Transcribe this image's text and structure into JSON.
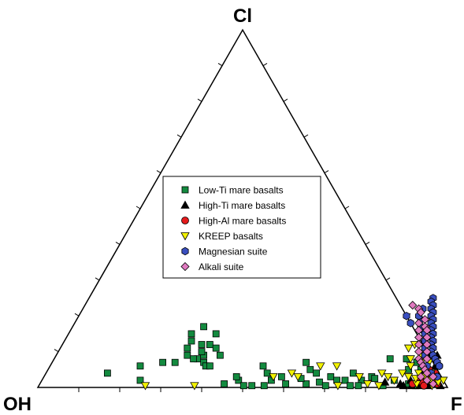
{
  "chart_data": {
    "type": "scatter",
    "subtype": "ternary",
    "apex_labels": {
      "top": "Cl",
      "left": "OH",
      "right": "F"
    },
    "legend": {
      "placement": "center",
      "entries": [
        {
          "name": "Low-Ti mare basalts",
          "marker": "square",
          "color": "#138a3f"
        },
        {
          "name": "High-Ti mare basalts",
          "marker": "triangle-up",
          "color": "#000000"
        },
        {
          "name": "High-Al mare basalts",
          "marker": "circle",
          "color": "#e41a1c"
        },
        {
          "name": "KREEP basalts",
          "marker": "triangle-down",
          "color": "#f2f200"
        },
        {
          "name": "Magnesian suite",
          "marker": "hexagon",
          "color": "#3a4fbf"
        },
        {
          "name": "Alkali suite",
          "marker": "diamond",
          "color": "#e07ac0"
        }
      ]
    },
    "ticks_per_edge": 9,
    "series": [
      {
        "name": "Low-Ti mare basalts",
        "points": [
          [
            0.82,
            0.08
          ],
          [
            0.86,
            0.08
          ],
          [
            0.62,
            0.07
          ],
          [
            0.64,
            0.05
          ],
          [
            0.66,
            0.04
          ],
          [
            0.7,
            0.03
          ],
          [
            0.72,
            0.02
          ],
          [
            0.74,
            0.02
          ],
          [
            0.52,
            0.06
          ],
          [
            0.54,
            0.04
          ],
          [
            0.58,
            0.03
          ],
          [
            0.56,
            0.02
          ],
          [
            0.6,
            0.01
          ],
          [
            0.65,
            0.01
          ],
          [
            0.68,
            0.015
          ],
          [
            0.78,
            0.02
          ],
          [
            0.8,
            0.03
          ],
          [
            0.88,
            0.05
          ],
          [
            0.9,
            0.01
          ],
          [
            0.92,
            0.005
          ],
          [
            0.76,
            0.005
          ],
          [
            0.7,
            0.005
          ],
          [
            0.55,
            0.005
          ],
          [
            0.84,
            0.005
          ],
          [
            0.86,
            0.02
          ],
          [
            0.48,
            0.02
          ],
          [
            0.5,
            0.005
          ],
          [
            0.52,
            0.005
          ],
          [
            0.45,
            0.01
          ],
          [
            0.47,
            0.03
          ],
          [
            0.35,
            0.08
          ],
          [
            0.36,
            0.09
          ],
          [
            0.4,
            0.09
          ],
          [
            0.36,
            0.12
          ],
          [
            0.38,
            0.11
          ],
          [
            0.36,
            0.15
          ],
          [
            0.32,
            0.17
          ],
          [
            0.3,
            0.15
          ],
          [
            0.31,
            0.13
          ],
          [
            0.34,
            0.12
          ],
          [
            0.31,
            0.11
          ],
          [
            0.32,
            0.09
          ],
          [
            0.34,
            0.08
          ],
          [
            0.35,
            0.1
          ],
          [
            0.37,
            0.07
          ],
          [
            0.3,
            0.07
          ],
          [
            0.27,
            0.07
          ],
          [
            0.22,
            0.06
          ],
          [
            0.24,
            0.02
          ],
          [
            0.15,
            0.04
          ],
          [
            0.38,
            0.06
          ],
          [
            0.39,
            0.06
          ],
          [
            0.63,
            0.025
          ],
          [
            0.75,
            0.04
          ],
          [
            0.78,
            0.005
          ],
          [
            0.81,
            0.025
          ],
          [
            0.93,
            0.03
          ],
          [
            0.91,
            0.05
          ],
          [
            0.89,
            0.07
          ]
        ]
      },
      {
        "name": "High-Ti mare basalts",
        "points": [
          [
            0.93,
            0.09
          ],
          [
            0.92,
            0.04
          ],
          [
            0.94,
            0.06
          ],
          [
            0.9,
            0.02
          ],
          [
            0.88,
            0.01
          ],
          [
            0.84,
            0.015
          ],
          [
            0.96,
            0.02
          ],
          [
            0.94,
            0.015
          ],
          [
            0.91,
            0.005
          ],
          [
            0.89,
            0.005
          ],
          [
            0.95,
            0.005
          ],
          [
            0.93,
            0.005
          ],
          [
            0.98,
            0.005
          ]
        ]
      },
      {
        "name": "High-Al mare basalts",
        "points": [
          [
            0.92,
            0.02
          ],
          [
            0.94,
            0.03
          ],
          [
            0.95,
            0.04
          ],
          [
            0.93,
            0.05
          ],
          [
            0.96,
            0.03
          ],
          [
            0.95,
            0.06
          ],
          [
            0.97,
            0.01
          ],
          [
            0.91,
            0.01
          ],
          [
            0.93,
            0.015
          ],
          [
            0.94,
            0.005
          ],
          [
            0.96,
            0.02
          ]
        ]
      },
      {
        "name": "KREEP basalts",
        "points": [
          [
            0.26,
            0.005
          ],
          [
            0.38,
            0.005
          ],
          [
            0.56,
            0.03
          ],
          [
            0.6,
            0.04
          ],
          [
            0.62,
            0.03
          ],
          [
            0.66,
            0.06
          ],
          [
            0.7,
            0.06
          ],
          [
            0.77,
            0.03
          ],
          [
            0.82,
            0.04
          ],
          [
            0.85,
            0.11
          ],
          [
            0.86,
            0.12
          ],
          [
            0.87,
            0.08
          ],
          [
            0.88,
            0.06
          ],
          [
            0.9,
            0.07
          ],
          [
            0.91,
            0.04
          ],
          [
            0.92,
            0.01
          ],
          [
            0.89,
            0.03
          ],
          [
            0.86,
            0.02
          ],
          [
            0.83,
            0.005
          ],
          [
            0.93,
            0.03
          ],
          [
            0.94,
            0.04
          ],
          [
            0.95,
            0.02
          ],
          [
            0.97,
            0.015
          ],
          [
            0.96,
            0.005
          ],
          [
            0.98,
            0.02
          ],
          [
            0.91,
            0.025
          ],
          [
            0.87,
            0.04
          ],
          [
            0.84,
            0.03
          ],
          [
            0.8,
            0.01
          ],
          [
            0.73,
            0.005
          ],
          [
            0.89,
            0.09
          ],
          [
            0.92,
            0.07
          ]
        ]
      },
      {
        "name": "Magnesian suite",
        "points": [
          [
            0.83,
            0.22
          ],
          [
            0.84,
            0.25
          ],
          [
            0.84,
            0.24
          ],
          [
            0.85,
            0.23
          ],
          [
            0.85,
            0.22
          ],
          [
            0.86,
            0.21
          ],
          [
            0.86,
            0.2
          ],
          [
            0.87,
            0.19
          ],
          [
            0.87,
            0.18
          ],
          [
            0.88,
            0.17
          ],
          [
            0.88,
            0.16
          ],
          [
            0.89,
            0.15
          ],
          [
            0.89,
            0.14
          ],
          [
            0.9,
            0.13
          ],
          [
            0.9,
            0.12
          ],
          [
            0.91,
            0.11
          ],
          [
            0.91,
            0.1
          ],
          [
            0.92,
            0.09
          ],
          [
            0.93,
            0.08
          ],
          [
            0.94,
            0.07
          ],
          [
            0.95,
            0.06
          ],
          [
            0.8,
            0.2
          ],
          [
            0.82,
            0.18
          ],
          [
            0.84,
            0.19
          ],
          [
            0.86,
            0.16
          ],
          [
            0.87,
            0.15
          ],
          [
            0.85,
            0.17
          ],
          [
            0.88,
            0.13
          ],
          [
            0.89,
            0.11
          ],
          [
            0.9,
            0.09
          ],
          [
            0.92,
            0.06
          ],
          [
            0.94,
            0.04
          ],
          [
            0.96,
            0.03
          ],
          [
            0.83,
            0.2
          ]
        ]
      },
      {
        "name": "Alkali suite",
        "points": [
          [
            0.8,
            0.23
          ],
          [
            0.82,
            0.22
          ],
          [
            0.83,
            0.21
          ],
          [
            0.84,
            0.18
          ],
          [
            0.85,
            0.16
          ],
          [
            0.86,
            0.14
          ],
          [
            0.87,
            0.12
          ],
          [
            0.88,
            0.1
          ],
          [
            0.89,
            0.08
          ],
          [
            0.9,
            0.07
          ],
          [
            0.91,
            0.06
          ],
          [
            0.92,
            0.05
          ],
          [
            0.93,
            0.04
          ],
          [
            0.94,
            0.02
          ],
          [
            0.95,
            0.03
          ],
          [
            0.85,
            0.19
          ],
          [
            0.86,
            0.17
          ],
          [
            0.87,
            0.16
          ],
          [
            0.88,
            0.14
          ],
          [
            0.89,
            0.12
          ],
          [
            0.9,
            0.1
          ],
          [
            0.91,
            0.08
          ],
          [
            0.92,
            0.03
          ],
          [
            0.96,
            0.01
          ]
        ]
      }
    ]
  }
}
